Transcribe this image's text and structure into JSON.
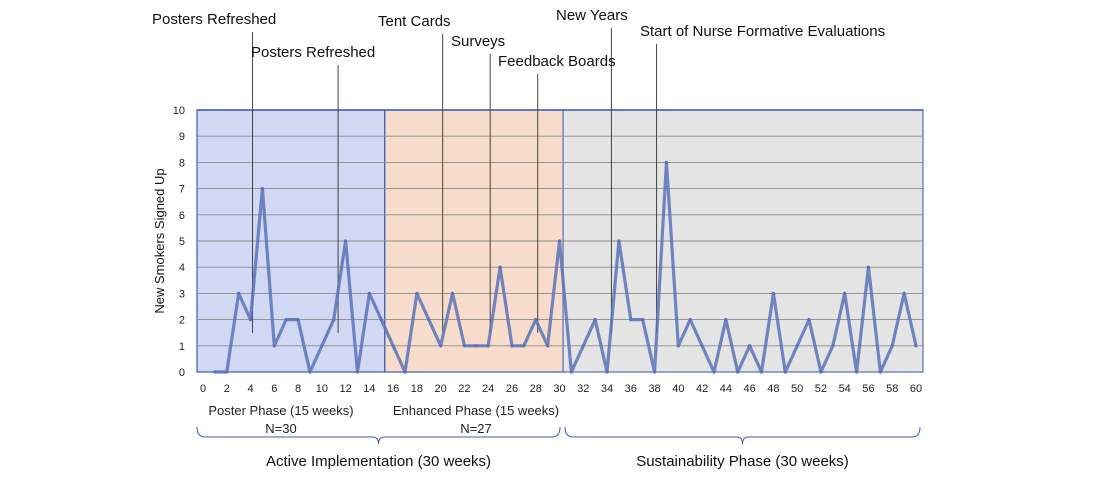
{
  "chart_data": {
    "type": "line",
    "ylabel": "New Smokers Signed Up",
    "xlim": [
      0,
      60
    ],
    "ylim": [
      0,
      10
    ],
    "x_ticks": [
      0,
      2,
      4,
      6,
      8,
      10,
      12,
      14,
      16,
      18,
      20,
      22,
      24,
      26,
      28,
      30,
      32,
      34,
      36,
      38,
      40,
      42,
      44,
      46,
      48,
      50,
      52,
      54,
      56,
      58,
      60
    ],
    "y_ticks": [
      0,
      1,
      2,
      3,
      4,
      5,
      6,
      7,
      8,
      9,
      10
    ],
    "grid": true,
    "series": [
      {
        "color": "#5b72b8",
        "x": [
          1,
          2,
          3,
          4,
          5,
          6,
          7,
          8,
          9,
          10,
          11,
          12,
          13,
          14,
          15,
          16,
          17,
          18,
          19,
          20,
          21,
          22,
          23,
          24,
          25,
          26,
          27,
          28,
          29,
          30,
          31,
          32,
          33,
          34,
          35,
          36,
          37,
          38,
          39,
          40,
          41,
          42,
          43,
          44,
          45,
          46,
          47,
          48,
          49,
          50,
          51,
          52,
          53,
          54,
          55,
          56,
          57,
          58,
          59,
          60
        ],
        "values": [
          0,
          0,
          3,
          2,
          7,
          1,
          2,
          2,
          0,
          1,
          2,
          5,
          0,
          3,
          2,
          1,
          0,
          3,
          2,
          1,
          3,
          1,
          1,
          1,
          4,
          1,
          1,
          2,
          1,
          5,
          0,
          1,
          2,
          0,
          5,
          2,
          2,
          0,
          8,
          1,
          2,
          1,
          0,
          2,
          0,
          1,
          0,
          3,
          0,
          1,
          2,
          0,
          1,
          3,
          0,
          4,
          0,
          1,
          3,
          1
        ]
      }
    ],
    "phases": [
      {
        "start": 0,
        "end": 15.3,
        "color": "#d0d8f4",
        "border": "#3d5cb4"
      },
      {
        "start": 15.3,
        "end": 30.3,
        "color": "#f7dccb",
        "border": "#3d5cb4"
      },
      {
        "start": 30.3,
        "end": 60.6,
        "color": "#e4e4e4",
        "border": "#5a6fb0"
      }
    ],
    "annotations": [
      {
        "label": "Posters Refreshed",
        "x": 4
      },
      {
        "label": "Posters Refreshed",
        "x": 11.2
      },
      {
        "label": "Tent Cards",
        "x": 20
      },
      {
        "label": "Surveys",
        "x": 24
      },
      {
        "label": "Feedback Boards",
        "x": 28
      },
      {
        "label": "New Years",
        "x": 34.2
      },
      {
        "label": "Start of Nurse Formative Evaluations",
        "x": 38
      }
    ],
    "phase_labels": [
      {
        "name": "Poster Phase (15 weeks)",
        "n": "N=30"
      },
      {
        "name": "Enhanced Phase (15 weeks)",
        "n": "N=27"
      }
    ],
    "group_labels": [
      {
        "label": "Active Implementation (30 weeks)",
        "start": 0,
        "end": 30
      },
      {
        "label": "Sustainability Phase (30 weeks)",
        "start": 30,
        "end": 60
      }
    ]
  }
}
